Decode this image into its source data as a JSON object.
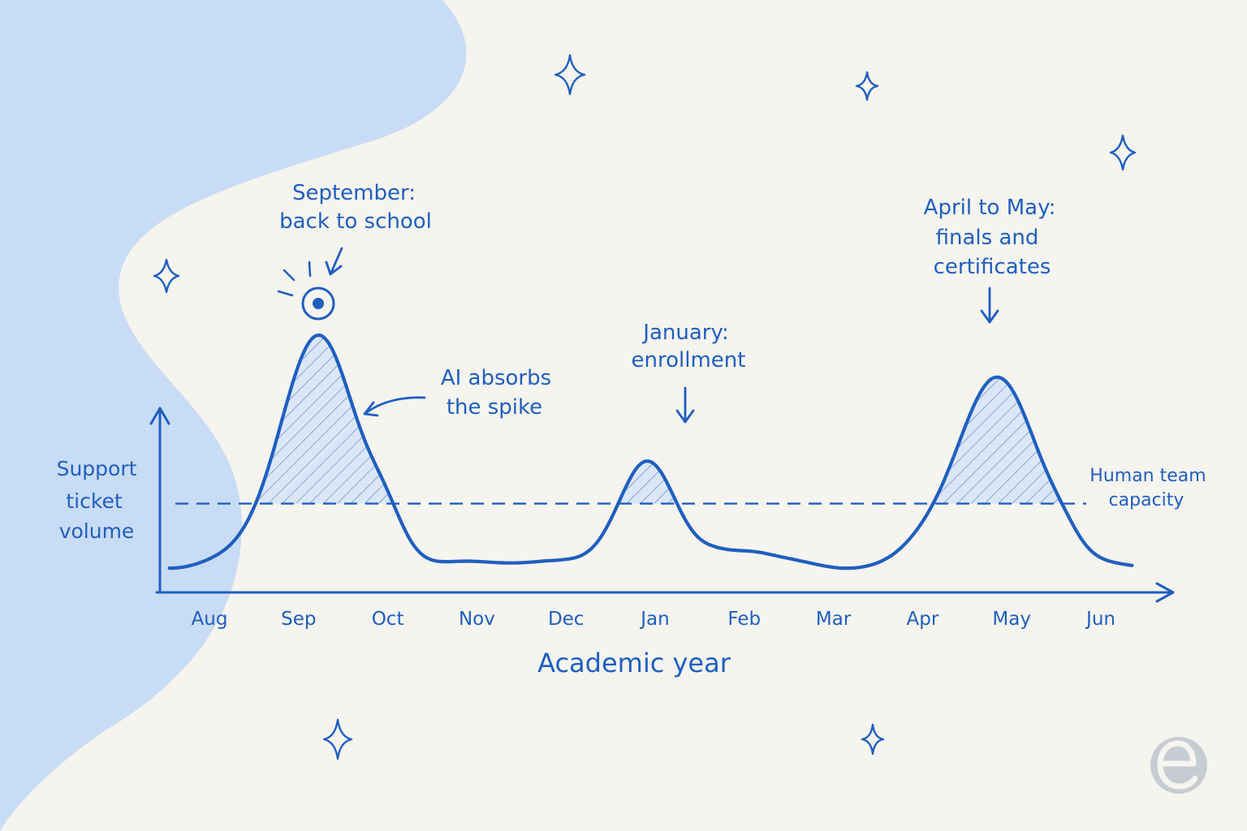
{
  "chart_data": {
    "type": "line",
    "title": "",
    "xlabel": "Academic year",
    "ylabel_lines": [
      "Support",
      "ticket",
      "volume"
    ],
    "categories": [
      "Aug",
      "Sep",
      "Oct",
      "Nov",
      "Dec",
      "Jan",
      "Feb",
      "Mar",
      "Apr",
      "May",
      "Jun"
    ],
    "series": [
      {
        "values": [
          0.3,
          5.6,
          1.3,
          0.1,
          0.1,
          2.7,
          0.7,
          0.1,
          0.6,
          4.5,
          0.2
        ]
      }
    ],
    "reference_line": {
      "label_lines": [
        "Human team",
        "capacity"
      ],
      "value": 1.6,
      "style": "dashed"
    },
    "annotations": [
      {
        "lines": [
          "September:",
          "back to school"
        ]
      },
      {
        "lines": [
          "AI absorbs",
          "the spike"
        ]
      },
      {
        "lines": [
          "January:",
          "enrollment"
        ]
      },
      {
        "lines": [
          "April to May:",
          "finals and",
          "certificates"
        ]
      }
    ],
    "ylim": [
      0,
      6.5
    ],
    "grid": false,
    "legend": "none",
    "y_ticks": false
  },
  "colors": {
    "ink": "#1f5fbf",
    "background": "#f5f4ef",
    "blob": "#c9dcf5",
    "hatch_fill": "#dbe6f6",
    "logo": "#c7ccd3"
  },
  "icons": [
    "sparkle-icon",
    "logo-e-icon"
  ]
}
